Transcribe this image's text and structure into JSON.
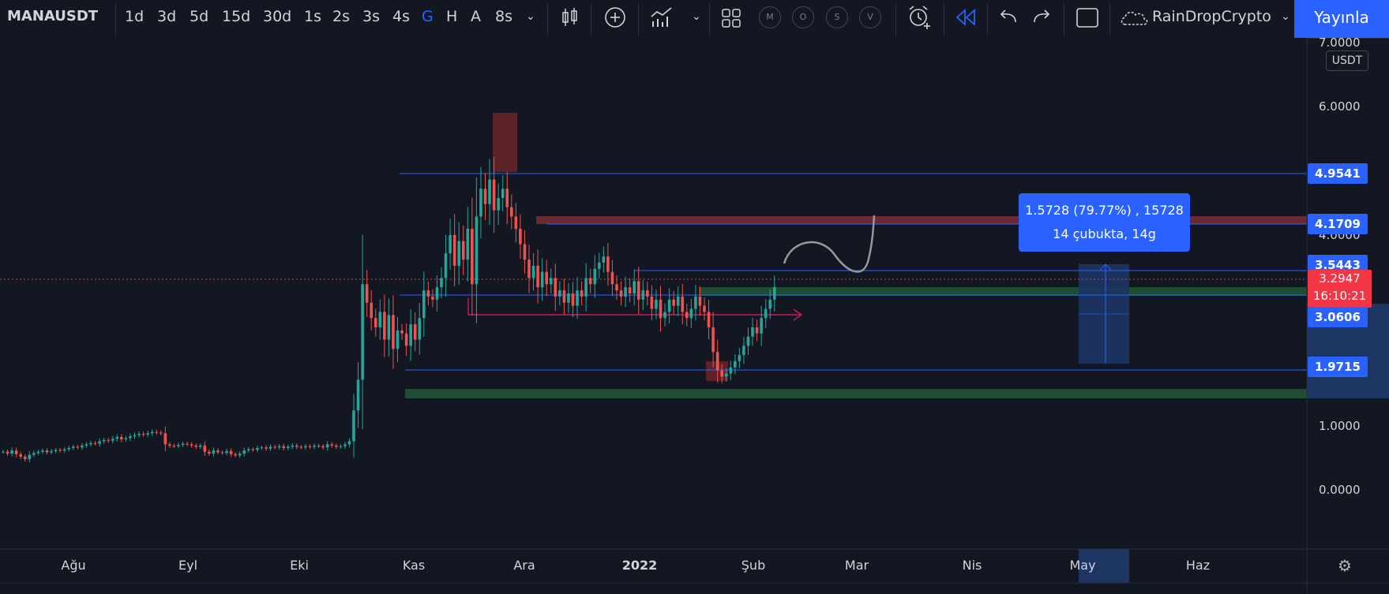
{
  "toolbar": {
    "symbol": "MANAUSDT",
    "intervals": [
      "1d",
      "3d",
      "5d",
      "15d",
      "30d",
      "1s",
      "2s",
      "3s",
      "4s",
      "G",
      "H",
      "A",
      "8s"
    ],
    "active_interval": "G",
    "circle_buttons": [
      "M",
      "O",
      "S",
      "V"
    ],
    "user": "RainDropCrypto",
    "publish_label": "Yayınla"
  },
  "price_axis": {
    "currency": "USDT",
    "ticks": [
      "7.0000",
      "6.0000",
      "4.0000",
      "1.0000",
      "0.0000"
    ],
    "levels": [
      "4.9541",
      "4.1709",
      "3.5443",
      "3.0606",
      "1.9715"
    ],
    "current_price": "3.2947",
    "countdown": "16:10:21"
  },
  "time_axis": [
    "Ağu",
    "Eyl",
    "Eki",
    "Kas",
    "Ara",
    "2022",
    "Şub",
    "Mar",
    "Nis",
    "May",
    "Haz"
  ],
  "measure_tooltip": {
    "line1": "1.5728 (79.77%) , 15728",
    "line2": "14 çubukta, 14g"
  },
  "colors": {
    "up": "#26a69a",
    "down": "#ef5350",
    "line": "#2962ff",
    "bg": "#131722"
  },
  "chart_data": {
    "type": "candlestick",
    "symbol": "MANAUSDT",
    "interval": "1 day",
    "ylim": [
      -0.8,
      7.5
    ],
    "price_levels": [
      4.9541,
      4.1709,
      3.5443,
      3.0606,
      1.9715
    ],
    "current_price": 3.2947,
    "measure": {
      "from": 1.9715,
      "to": 3.5443,
      "change": 1.5728,
      "change_pct": 79.77,
      "bars": 14
    },
    "closes": [
      0.78,
      0.75,
      0.8,
      0.74,
      0.7,
      0.66,
      0.73,
      0.76,
      0.78,
      0.8,
      0.77,
      0.79,
      0.81,
      0.8,
      0.82,
      0.84,
      0.86,
      0.85,
      0.88,
      0.9,
      0.92,
      0.91,
      0.95,
      0.97,
      0.96,
      0.99,
      1.02,
      0.98,
      1.0,
      1.03,
      1.05,
      1.07,
      1.06,
      1.08,
      1.1,
      1.09,
      1.08,
      0.9,
      0.88,
      0.87,
      0.89,
      0.91,
      0.9,
      0.88,
      0.86,
      0.88,
      0.78,
      0.75,
      0.8,
      0.77,
      0.76,
      0.79,
      0.74,
      0.72,
      0.75,
      0.8,
      0.82,
      0.81,
      0.84,
      0.85,
      0.83,
      0.86,
      0.85,
      0.87,
      0.84,
      0.86,
      0.88,
      0.86,
      0.85,
      0.87,
      0.86,
      0.88,
      0.87,
      0.85,
      0.9,
      0.88,
      0.86,
      0.87,
      0.9,
      0.95,
      1.45,
      1.95,
      3.5,
      3.2,
      2.95,
      2.8,
      3.05,
      2.6,
      3.0,
      2.45,
      2.75,
      2.7,
      2.5,
      2.85,
      2.6,
      2.95,
      3.4,
      3.3,
      3.25,
      3.45,
      3.6,
      4.0,
      4.3,
      3.8,
      4.2,
      3.9,
      4.4,
      3.5,
      4.6,
      5.05,
      4.8,
      5.2,
      4.7,
      4.9,
      5.05,
      4.75,
      4.6,
      4.4,
      4.15,
      3.9,
      3.6,
      3.8,
      3.45,
      3.7,
      3.5,
      3.6,
      3.3,
      3.4,
      3.2,
      3.35,
      3.15,
      3.4,
      3.3,
      3.6,
      3.5,
      3.75,
      3.85,
      3.95,
      3.7,
      3.5,
      3.4,
      3.3,
      3.45,
      3.35,
      3.55,
      3.25,
      3.4,
      3.3,
      3.1,
      3.25,
      2.95,
      3.05,
      3.25,
      3.15,
      3.3,
      3.05,
      2.95,
      3.1,
      3.3,
      3.15,
      3.05,
      2.8,
      2.4,
      2.1,
      2.0,
      2.05,
      2.15,
      2.25,
      2.35,
      2.5,
      2.65,
      2.8,
      2.7,
      2.95,
      3.1,
      3.25,
      3.45
    ]
  }
}
